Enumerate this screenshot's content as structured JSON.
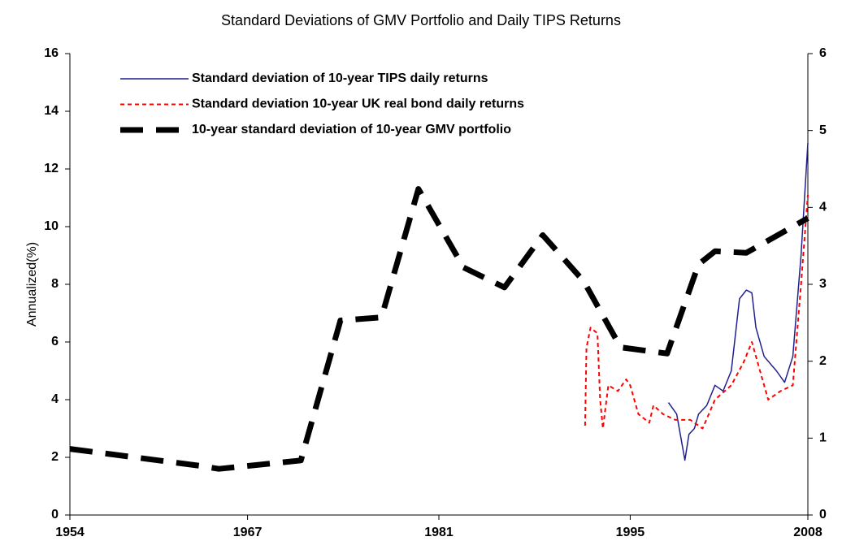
{
  "chart_data": {
    "type": "line",
    "title": "Standard Deviations of GMV Portfolio and Daily TIPS Returns",
    "y_label": "Annualized(%)",
    "xlim": [
      1954,
      2008
    ],
    "xticks": [
      1954,
      1967,
      1981,
      1995,
      2008
    ],
    "ylim": [
      0,
      16
    ],
    "yticks": [
      0,
      2,
      4,
      6,
      8,
      10,
      12,
      14,
      16
    ],
    "y2lim": [
      0,
      6
    ],
    "y2ticks": [
      0,
      1,
      2,
      3,
      4,
      5,
      6
    ],
    "grid": false,
    "legend": "upper left",
    "series": [
      {
        "name": "Standard deviation of 10-year TIPS daily returns",
        "color": "#1f1f8f",
        "dash": "solid",
        "width": 1.5,
        "x": [
          1997.8,
          1998.4,
          1999.0,
          1999.3,
          1999.7,
          2000.0,
          2000.6,
          2001.2,
          2001.8,
          2002.4,
          2003.0,
          2003.5,
          2003.9,
          2004.2,
          2004.8,
          2005.7,
          2006.3,
          2006.9,
          2007.5,
          2008.0
        ],
        "values": [
          3.9,
          3.5,
          1.9,
          2.8,
          3.0,
          3.5,
          3.8,
          4.5,
          4.3,
          5.0,
          7.5,
          7.8,
          7.7,
          6.5,
          5.5,
          5.0,
          4.6,
          5.5,
          9.0,
          12.9
        ]
      },
      {
        "name": "Standard deviation 10-year UK real bond daily returns",
        "color": "#ff0000",
        "dash": "short",
        "width": 2,
        "x": [
          1991.7,
          1991.8,
          1992.1,
          1992.6,
          1992.8,
          1993.0,
          1993.4,
          1994.1,
          1994.7,
          1995.0,
          1995.6,
          1996.4,
          1996.7,
          1997.4,
          1998.3,
          1999.4,
          2000.3,
          2001.2,
          2002.4,
          2003.3,
          2003.9,
          2004.5,
          2005.1,
          2006.0,
          2006.9,
          2007.5,
          2008.0
        ],
        "values": [
          3.1,
          5.8,
          6.5,
          6.3,
          4.0,
          3.0,
          4.5,
          4.3,
          4.7,
          4.5,
          3.5,
          3.2,
          3.8,
          3.5,
          3.3,
          3.3,
          3.0,
          4.0,
          4.5,
          5.3,
          6.0,
          5.0,
          4.0,
          4.3,
          4.5,
          8.0,
          11.1
        ]
      },
      {
        "name": "10-year standard deviation of 10-year GMV portfolio",
        "color": "#000000",
        "dash": "long",
        "width": 7,
        "axis": "y2",
        "x": [
          1954.0,
          1963.5,
          1964.9,
          1970.9,
          1973.8,
          1976.8,
          1979.5,
          1982.8,
          1985.8,
          1988.6,
          1991.6,
          1994.3,
          1997.7,
          2000.0,
          2001.2,
          2003.5,
          2008.0
        ],
        "values": [
          0.86,
          0.64,
          0.6,
          0.71,
          2.53,
          2.57,
          4.24,
          3.22,
          2.96,
          3.64,
          3.04,
          2.18,
          2.1,
          3.26,
          3.43,
          3.41,
          3.86
        ]
      }
    ]
  }
}
